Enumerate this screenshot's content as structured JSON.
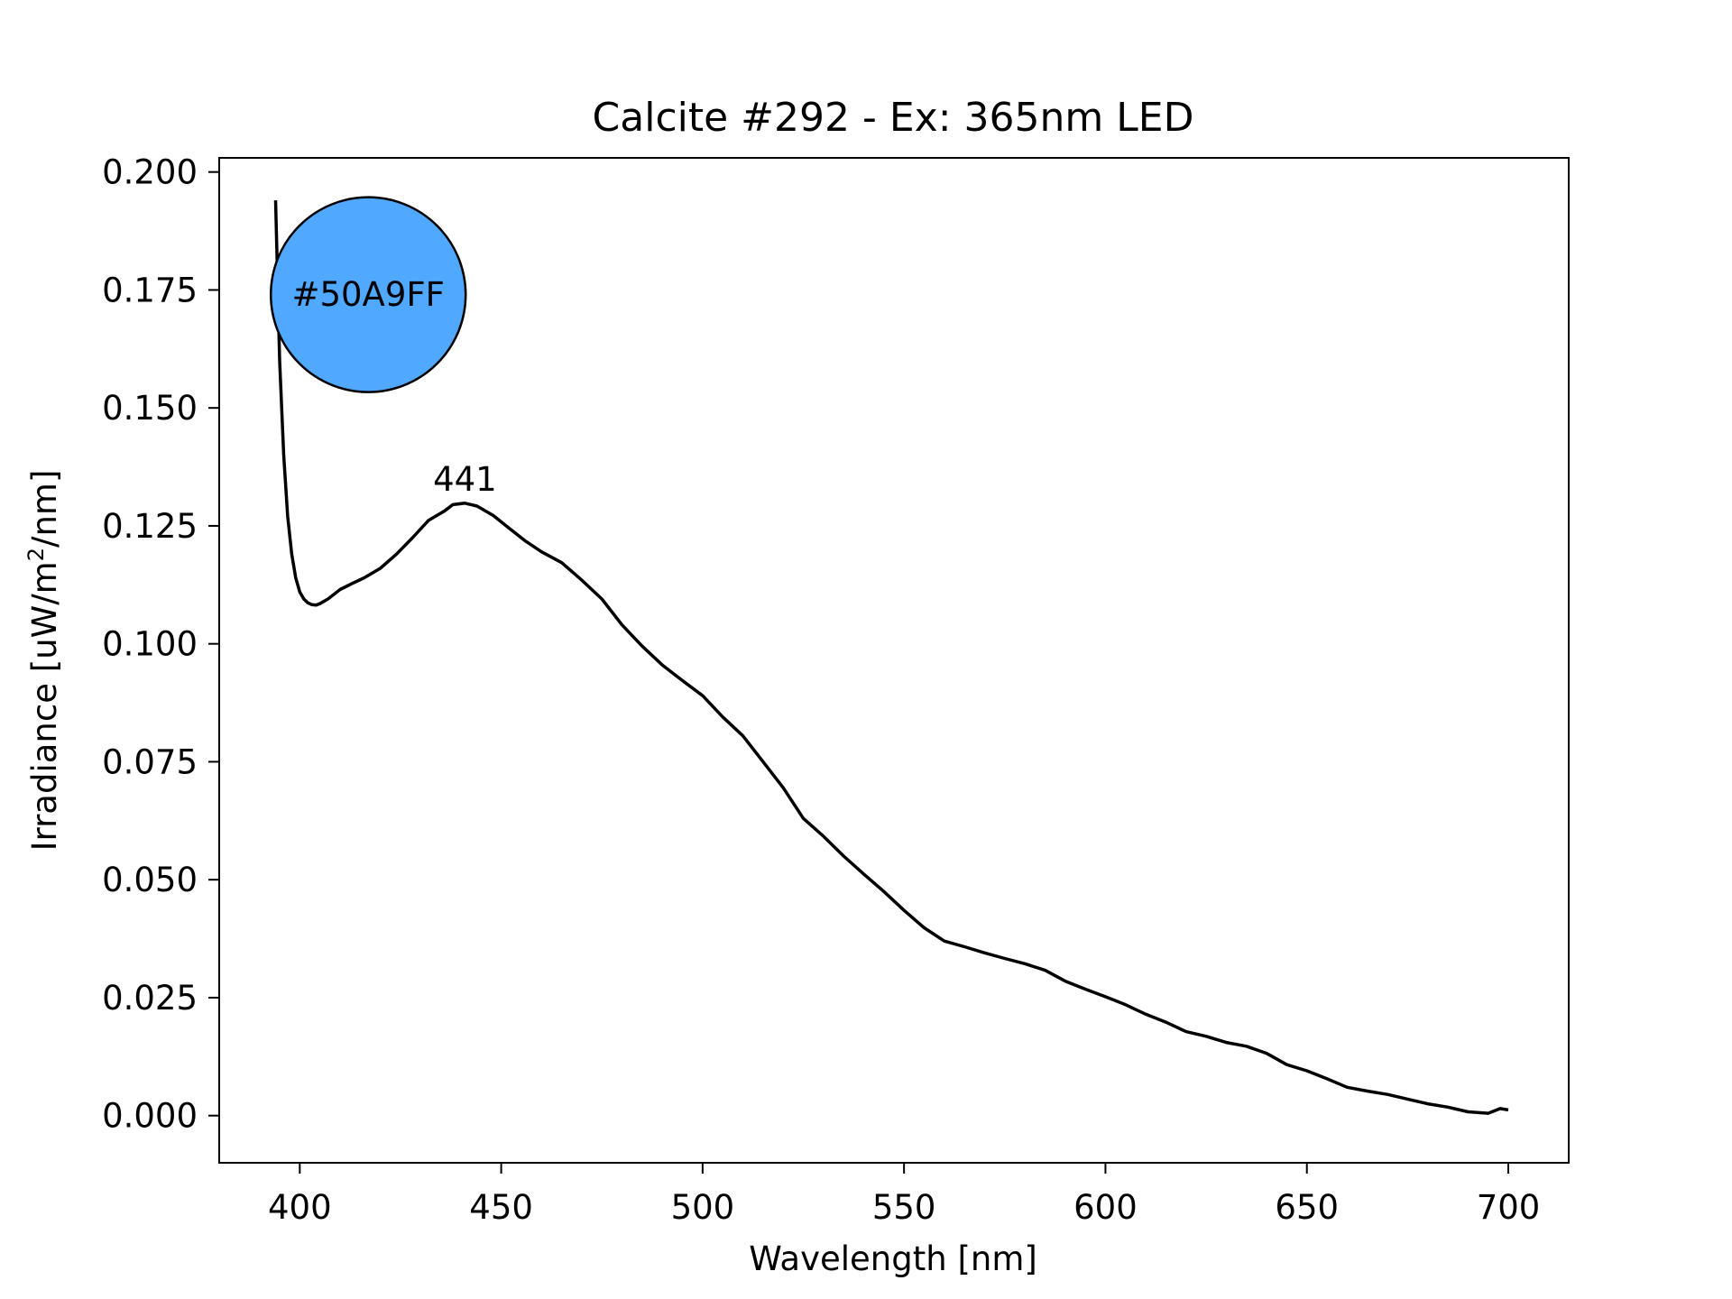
{
  "chart_data": {
    "type": "line",
    "title": "Calcite #292 - Ex: 365nm LED",
    "xlabel": "Wavelength [nm]",
    "ylabel_main": "Irradiance [uW/m",
    "ylabel_sup": "2",
    "ylabel_tail": "/nm]",
    "xlim": [
      380,
      715
    ],
    "ylim": [
      -0.01,
      0.203
    ],
    "xticks": [
      400,
      450,
      500,
      550,
      600,
      650,
      700
    ],
    "xtick_labels": [
      "400",
      "450",
      "500",
      "550",
      "600",
      "650",
      "700"
    ],
    "yticks": [
      0.0,
      0.025,
      0.05,
      0.075,
      0.1,
      0.125,
      0.15,
      0.175,
      0.2
    ],
    "ytick_labels": [
      "0.000",
      "0.025",
      "0.050",
      "0.075",
      "0.100",
      "0.125",
      "0.150",
      "0.175",
      "0.200"
    ],
    "grid": false,
    "line_color": "#000000",
    "series": [
      {
        "x": [
          394,
          395,
          396,
          397,
          398,
          399,
          400,
          401,
          402,
          403,
          404,
          405,
          407,
          410,
          413,
          416,
          420,
          424,
          428,
          432,
          436,
          438,
          441,
          444,
          448,
          452,
          456,
          460,
          465,
          470,
          475,
          480,
          485,
          490,
          495,
          500,
          505,
          510,
          515,
          520,
          525,
          530,
          535,
          540,
          545,
          550,
          555,
          560,
          565,
          570,
          575,
          580,
          585,
          590,
          595,
          600,
          605,
          610,
          615,
          620,
          625,
          630,
          635,
          640,
          645,
          650,
          655,
          660,
          665,
          670,
          675,
          680,
          685,
          690,
          695,
          698,
          700
        ],
        "y": [
          0.194,
          0.16,
          0.14,
          0.127,
          0.119,
          0.114,
          0.111,
          0.1095,
          0.1087,
          0.1083,
          0.1082,
          0.1085,
          0.1095,
          0.1115,
          0.1128,
          0.114,
          0.116,
          0.119,
          0.1225,
          0.1262,
          0.1282,
          0.1295,
          0.1298,
          0.1292,
          0.1272,
          0.1245,
          0.1218,
          0.1195,
          0.1172,
          0.1135,
          0.1095,
          0.104,
          0.0995,
          0.0955,
          0.0922,
          0.089,
          0.0845,
          0.0805,
          0.075,
          0.0695,
          0.063,
          0.0592,
          0.055,
          0.0512,
          0.0475,
          0.0435,
          0.0398,
          0.037,
          0.0358,
          0.0345,
          0.0333,
          0.0322,
          0.0308,
          0.0285,
          0.0268,
          0.0252,
          0.0235,
          0.0215,
          0.0198,
          0.0178,
          0.0168,
          0.0155,
          0.0147,
          0.0132,
          0.0108,
          0.0095,
          0.0078,
          0.006,
          0.0052,
          0.0045,
          0.0035,
          0.0025,
          0.0018,
          0.0008,
          0.0005,
          0.0015,
          0.0012
        ]
      }
    ],
    "annotations": [
      {
        "text": "441",
        "x": 441,
        "y": 0.1298
      }
    ],
    "color_badge": {
      "text": "#50A9FF",
      "fill": "#50A9FF",
      "x": 417,
      "y": 0.174
    }
  }
}
